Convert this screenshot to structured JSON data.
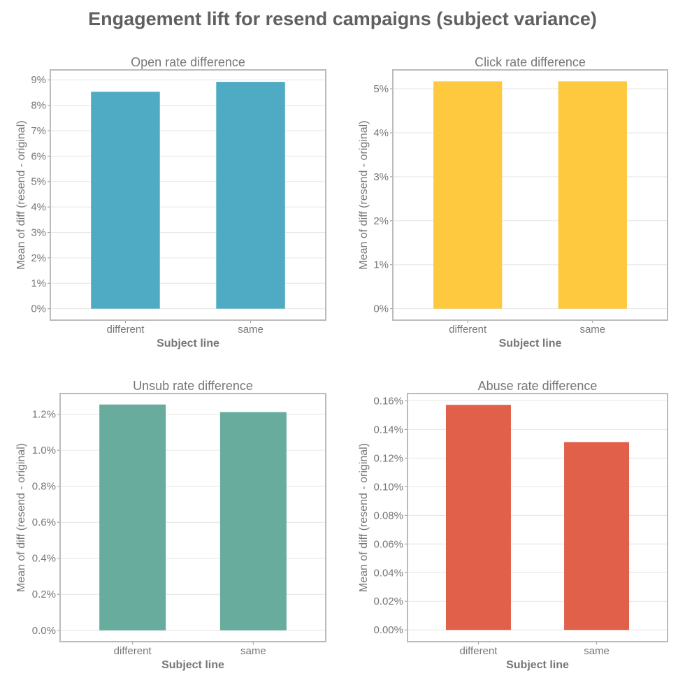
{
  "title": "Engagement lift for resend campaigns (subject variance)",
  "chart_data": [
    {
      "type": "bar",
      "title": "Open rate difference",
      "xlabel": "Subject line",
      "ylabel": "Mean of diff (resend - original)",
      "categories": [
        "different",
        "same"
      ],
      "values": [
        8.53,
        8.92
      ],
      "unit": "%",
      "ylim": [
        -0.45,
        9.39
      ],
      "ticks": [
        0,
        1,
        2,
        3,
        4,
        5,
        6,
        7,
        8,
        9
      ],
      "tick_labels": [
        "0%",
        "1%",
        "2%",
        "3%",
        "4%",
        "5%",
        "6%",
        "7%",
        "8%",
        "9%"
      ],
      "color": "#4fabc4"
    },
    {
      "type": "bar",
      "title": "Click rate difference",
      "xlabel": "Subject line",
      "ylabel": "Mean of diff (resend - original)",
      "categories": [
        "different",
        "same"
      ],
      "values": [
        5.17,
        5.17
      ],
      "unit": "%",
      "ylim": [
        -0.26,
        5.43
      ],
      "ticks": [
        0,
        1,
        2,
        3,
        4,
        5
      ],
      "tick_labels": [
        "0%",
        "1%",
        "2%",
        "3%",
        "4%",
        "5%"
      ],
      "color": "#fec93f"
    },
    {
      "type": "bar",
      "title": "Unsub rate difference",
      "xlabel": "Subject line",
      "ylabel": "Mean of diff (resend - original)",
      "categories": [
        "different",
        "same"
      ],
      "values": [
        1.254,
        1.212
      ],
      "unit": "%",
      "ylim": [
        -0.063,
        1.315
      ],
      "ticks": [
        0,
        0.2,
        0.4,
        0.6,
        0.8,
        1.0,
        1.2
      ],
      "tick_labels": [
        "0.0%",
        "0.2%",
        "0.4%",
        "0.6%",
        "0.8%",
        "1.0%",
        "1.2%"
      ],
      "color": "#67ac9d"
    },
    {
      "type": "bar",
      "title": "Abuse rate difference",
      "xlabel": "Subject line",
      "ylabel": "Mean of diff (resend - original)",
      "categories": [
        "different",
        "same"
      ],
      "values": [
        0.1572,
        0.1312
      ],
      "unit": "%",
      "ylim": [
        -0.0082,
        0.1651
      ],
      "ticks": [
        0,
        0.02,
        0.04,
        0.06,
        0.08,
        0.1,
        0.12,
        0.14,
        0.16
      ],
      "tick_labels": [
        "0.00%",
        "0.02%",
        "0.04%",
        "0.06%",
        "0.08%",
        "0.10%",
        "0.12%",
        "0.14%",
        "0.16%"
      ],
      "color": "#e1604a"
    }
  ]
}
